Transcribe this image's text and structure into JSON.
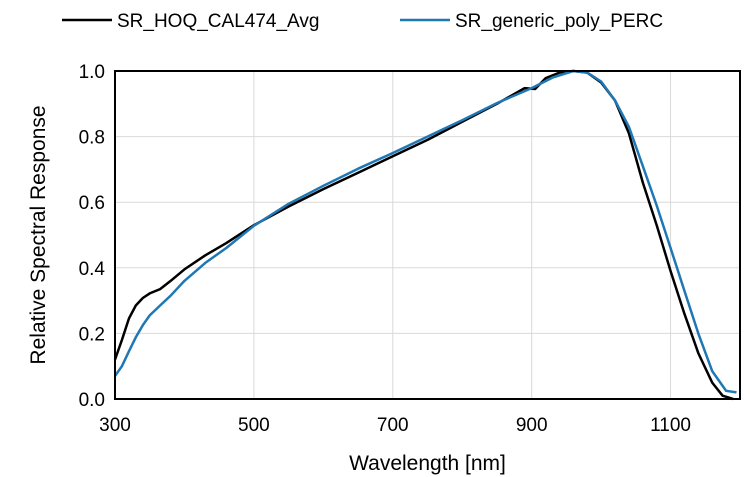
{
  "chart_data": {
    "type": "line",
    "xlabel": "Wavelength [nm]",
    "ylabel": "Relative Spectral Response",
    "xlim": [
      300,
      1200
    ],
    "ylim": [
      0,
      1.0
    ],
    "x_ticks": [
      300,
      500,
      700,
      900,
      1100
    ],
    "x_tick_labels": [
      "300",
      "500",
      "700",
      "900",
      "1100"
    ],
    "y_ticks": [
      0,
      0.2,
      0.4,
      0.6,
      0.8,
      1.0
    ],
    "y_tick_labels": [
      "0.0",
      "0.2",
      "0.4",
      "0.6",
      "0.8",
      "1.0"
    ],
    "grid": true,
    "legend_position": "top",
    "series": [
      {
        "name": "SR_HOQ_CAL474_Avg",
        "color": "#000000",
        "points": [
          [
            300,
            0.12
          ],
          [
            310,
            0.18
          ],
          [
            320,
            0.245
          ],
          [
            330,
            0.285
          ],
          [
            340,
            0.308
          ],
          [
            350,
            0.322
          ],
          [
            365,
            0.335
          ],
          [
            380,
            0.36
          ],
          [
            400,
            0.395
          ],
          [
            430,
            0.438
          ],
          [
            460,
            0.475
          ],
          [
            500,
            0.53
          ],
          [
            550,
            0.587
          ],
          [
            600,
            0.64
          ],
          [
            650,
            0.69
          ],
          [
            700,
            0.74
          ],
          [
            750,
            0.79
          ],
          [
            800,
            0.845
          ],
          [
            850,
            0.9
          ],
          [
            890,
            0.948
          ],
          [
            905,
            0.945
          ],
          [
            910,
            0.956
          ],
          [
            920,
            0.978
          ],
          [
            940,
            0.995
          ],
          [
            960,
            1.0
          ],
          [
            980,
            0.995
          ],
          [
            1000,
            0.965
          ],
          [
            1020,
            0.91
          ],
          [
            1040,
            0.81
          ],
          [
            1060,
            0.66
          ],
          [
            1080,
            0.53
          ],
          [
            1100,
            0.39
          ],
          [
            1120,
            0.26
          ],
          [
            1140,
            0.14
          ],
          [
            1160,
            0.05
          ],
          [
            1175,
            0.01
          ],
          [
            1190,
            0.0
          ]
        ]
      },
      {
        "name": "SR_generic_poly_PERC",
        "color": "#1f77b4",
        "points": [
          [
            300,
            0.07
          ],
          [
            310,
            0.1
          ],
          [
            320,
            0.145
          ],
          [
            330,
            0.188
          ],
          [
            340,
            0.225
          ],
          [
            350,
            0.255
          ],
          [
            365,
            0.285
          ],
          [
            380,
            0.315
          ],
          [
            400,
            0.36
          ],
          [
            430,
            0.415
          ],
          [
            460,
            0.46
          ],
          [
            500,
            0.528
          ],
          [
            550,
            0.595
          ],
          [
            600,
            0.65
          ],
          [
            650,
            0.702
          ],
          [
            700,
            0.75
          ],
          [
            750,
            0.8
          ],
          [
            800,
            0.85
          ],
          [
            850,
            0.902
          ],
          [
            900,
            0.948
          ],
          [
            930,
            0.98
          ],
          [
            960,
            1.0
          ],
          [
            980,
            0.995
          ],
          [
            1000,
            0.968
          ],
          [
            1020,
            0.91
          ],
          [
            1040,
            0.83
          ],
          [
            1060,
            0.71
          ],
          [
            1080,
            0.59
          ],
          [
            1100,
            0.46
          ],
          [
            1120,
            0.33
          ],
          [
            1140,
            0.2
          ],
          [
            1160,
            0.085
          ],
          [
            1180,
            0.025
          ],
          [
            1195,
            0.02
          ]
        ]
      }
    ]
  }
}
